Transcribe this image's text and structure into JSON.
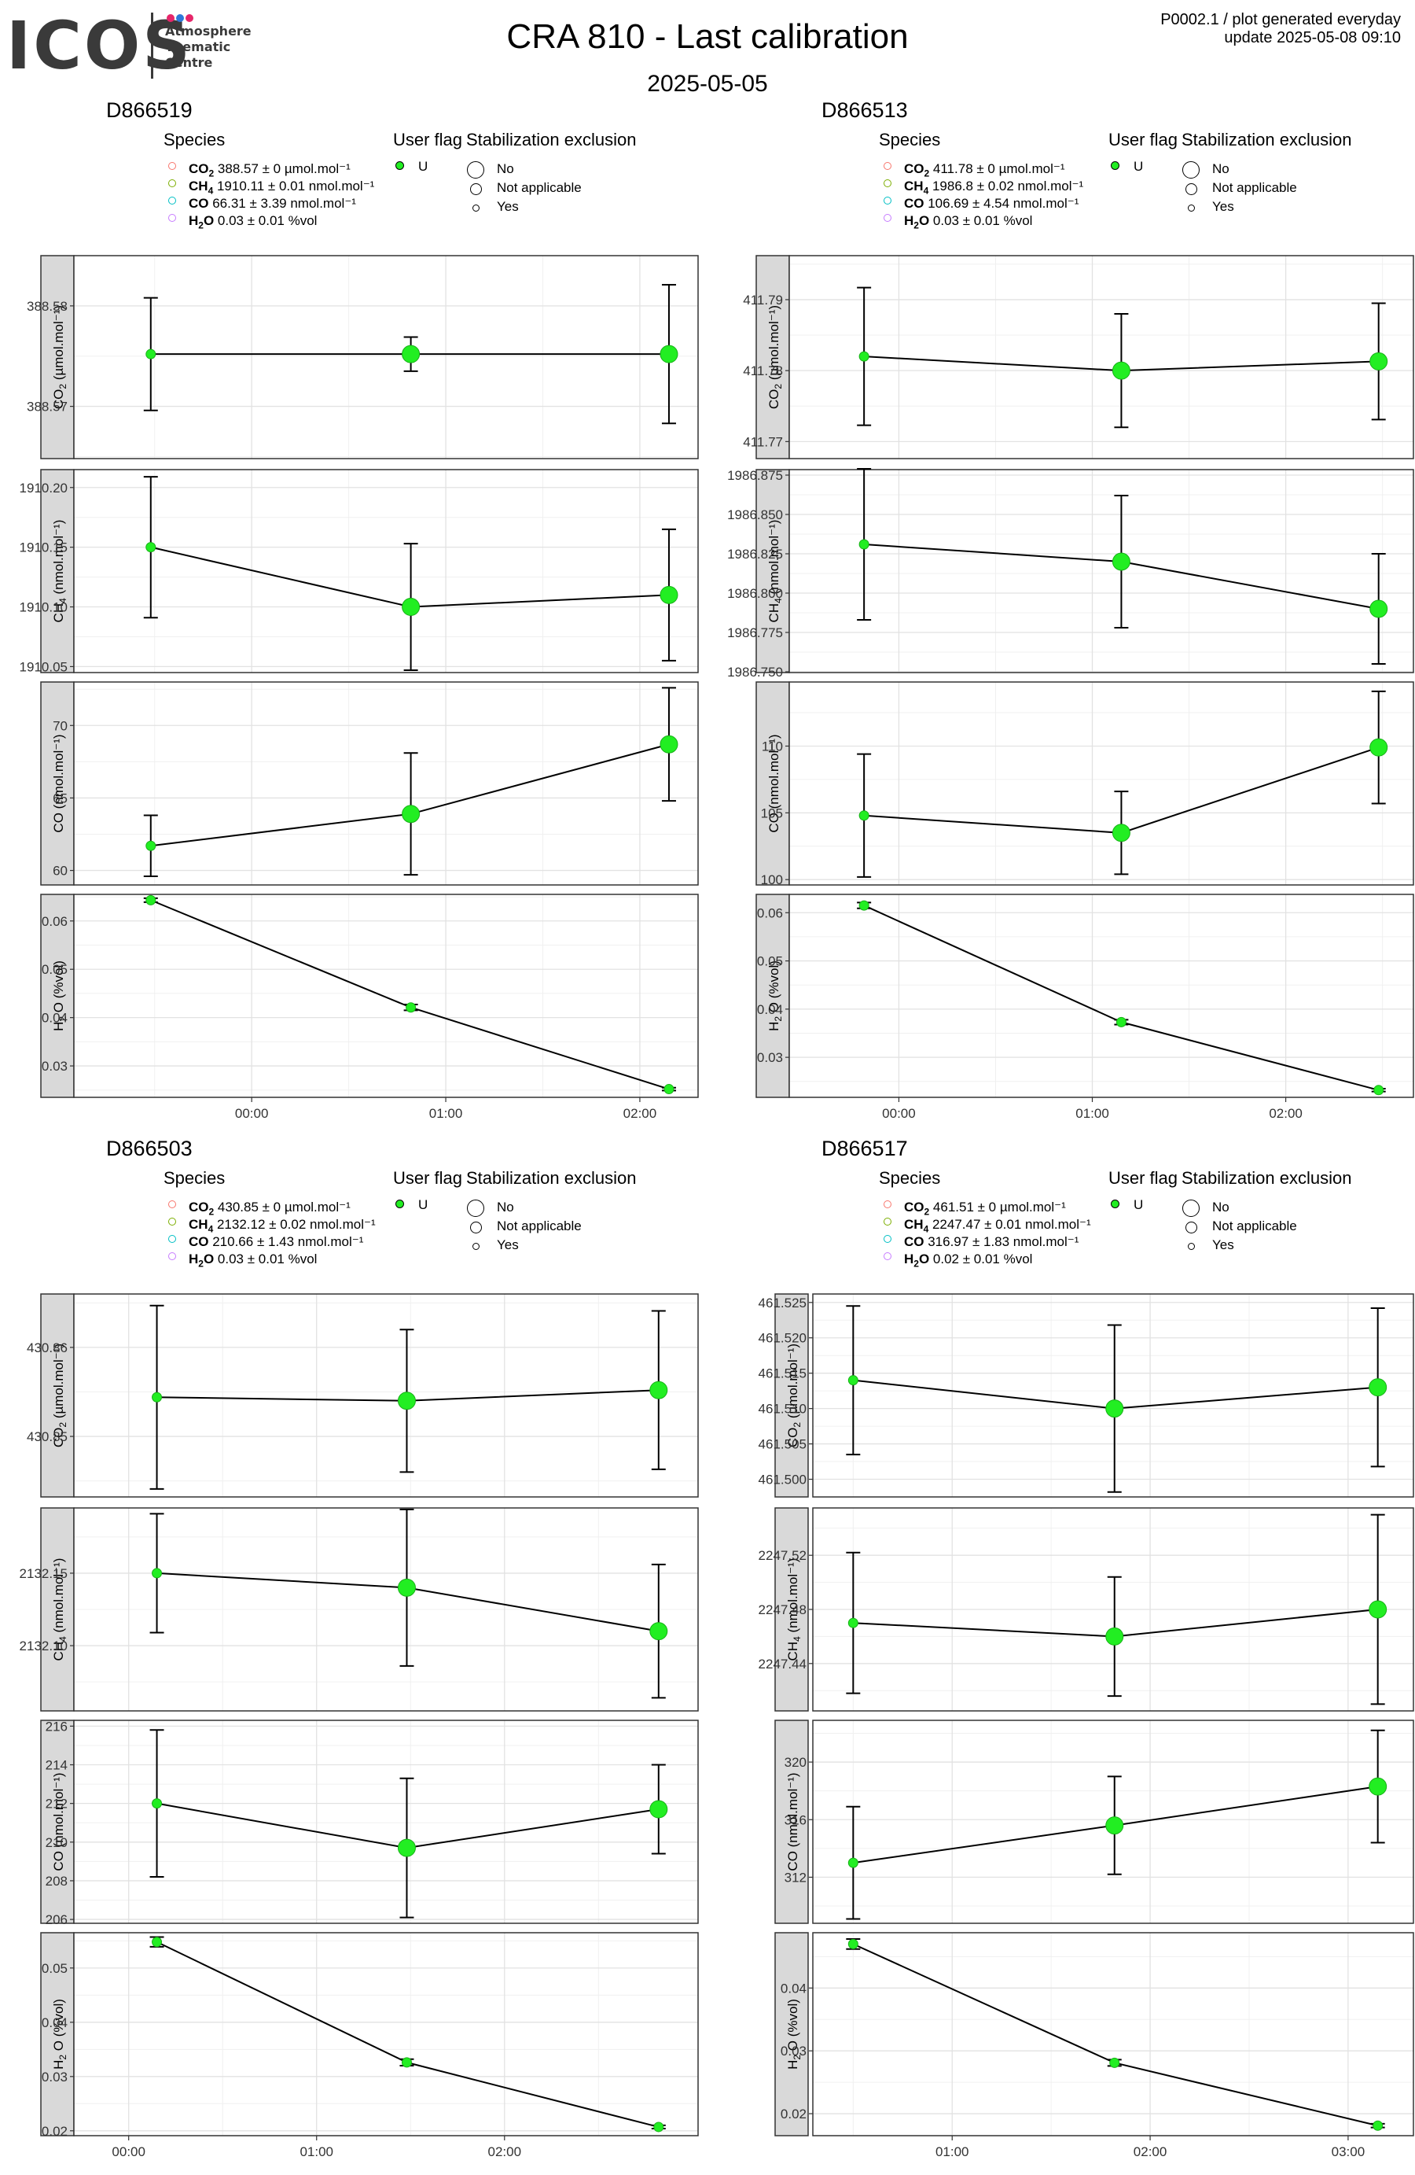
{
  "header": {
    "logo_text": "ICOS",
    "logo_sub": [
      "Atmosphere",
      "Thematic",
      "Centre"
    ],
    "logo_dot_colors": [
      "#e6266a",
      "#2e79d9",
      "#e6266a"
    ],
    "title": "CRA 810 - Last calibration",
    "subtitle": "2025-05-05",
    "meta_line1": "P0002.1 / plot generated everyday",
    "meta_line2": "update  2025-05-08 09:10"
  },
  "legend_labels": {
    "species": "Species",
    "user_flag": "User flag",
    "stabilization": "Stabilization exclusion",
    "flag_value": "U",
    "stab_items": [
      "No",
      "Not applicable",
      "Yes"
    ]
  },
  "colors": {
    "CO2": "#f8766d",
    "CH4": "#7cae00",
    "CO": "#00bfc4",
    "H2O": "#c77cff",
    "point_fill": "#22ee22",
    "point_edge": "#18b018",
    "strip": "#d9d9d9"
  },
  "chart_data": [
    {
      "type": "scatter",
      "panel": "D866519",
      "title": "D866519",
      "legend_species": [
        {
          "name": "CO",
          "sub": "2",
          "text": " 388.57 ± 0 µmol.mol⁻¹"
        },
        {
          "name": "CH",
          "sub": "4",
          "text": " 1910.11 ± 0.01 nmol.mol⁻¹"
        },
        {
          "name": "CO",
          "sub": "",
          "text": " 66.31 ± 3.39 nmol.mol⁻¹"
        },
        {
          "name": "H",
          "sub": "2",
          "text": "O 0.03 ± 0.01 %vol"
        }
      ],
      "x_ticks": [
        "00:00",
        "01:00",
        "02:00"
      ],
      "facets": [
        {
          "gas": "CO",
          "sub": "2",
          "unit": "(µmol.mol⁻¹)",
          "ylim": [
            388.5648,
            388.585
          ],
          "y_ticks": [
            388.57,
            388.58
          ],
          "y_tick_labels": [
            "388.57",
            "388.58"
          ],
          "points": [
            {
              "x": -0.52,
              "y": 388.5752,
              "err": 0.0056,
              "size": "Yes"
            },
            {
              "x": 0.82,
              "y": 388.5752,
              "err": 0.0017,
              "size": "No"
            },
            {
              "x": 2.15,
              "y": 388.5752,
              "err": 0.0069,
              "size": "No"
            }
          ]
        },
        {
          "gas": "CH",
          "sub": "4",
          "unit": "(nmol.mol⁻¹)",
          "ylim": [
            1910.045,
            1910.215
          ],
          "y_ticks": [
            1910.05,
            1910.1,
            1910.15,
            1910.2
          ],
          "y_tick_labels": [
            "1910.05",
            "1910.10",
            "1910.15",
            "1910.20"
          ],
          "points": [
            {
              "x": -0.52,
              "y": 1910.15,
              "err": 0.059,
              "size": "Yes"
            },
            {
              "x": 0.82,
              "y": 1910.1,
              "err": 0.053,
              "size": "No"
            },
            {
              "x": 2.15,
              "y": 1910.11,
              "err": 0.055,
              "size": "No"
            }
          ]
        },
        {
          "gas": "CO",
          "sub": "",
          "unit": "(nmol.mol⁻¹)",
          "ylim": [
            59.0,
            73.0
          ],
          "y_ticks": [
            60,
            65,
            70
          ],
          "y_tick_labels": [
            "60",
            "65",
            "70"
          ],
          "points": [
            {
              "x": -0.52,
              "y": 61.7,
              "err": 2.1,
              "size": "Yes"
            },
            {
              "x": 0.82,
              "y": 63.9,
              "err": 4.2,
              "size": "No"
            },
            {
              "x": 2.15,
              "y": 68.7,
              "err": 3.9,
              "size": "No"
            }
          ]
        },
        {
          "gas": "H",
          "sub": "2",
          "unit": "O (%vol)",
          "ylim": [
            0.0235,
            0.0655
          ],
          "y_ticks": [
            0.03,
            0.04,
            0.05,
            0.06
          ],
          "y_tick_labels": [
            "0.03",
            "0.04",
            "0.05",
            "0.06"
          ],
          "points": [
            {
              "x": -0.52,
              "y": 0.0643,
              "err": 0.0004,
              "size": "Yes"
            },
            {
              "x": 0.82,
              "y": 0.0421,
              "err": 0.0006,
              "size": "Yes"
            },
            {
              "x": 2.15,
              "y": 0.0252,
              "err": 0.0003,
              "size": "Yes"
            }
          ]
        }
      ]
    },
    {
      "type": "scatter",
      "panel": "D866513",
      "title": "D866513",
      "legend_species": [
        {
          "name": "CO",
          "sub": "2",
          "text": " 411.78 ± 0 µmol.mol⁻¹"
        },
        {
          "name": "CH",
          "sub": "4",
          "text": " 1986.8 ± 0.02 nmol.mol⁻¹"
        },
        {
          "name": "CO",
          "sub": "",
          "text": " 106.69 ± 4.54 nmol.mol⁻¹"
        },
        {
          "name": "H",
          "sub": "2",
          "text": "O 0.03 ± 0.01 %vol"
        }
      ],
      "x_ticks": [
        "00:00",
        "01:00",
        "02:00"
      ],
      "facets": [
        {
          "gas": "CO",
          "sub": "2",
          "unit": "(µmol.mol⁻¹)",
          "ylim": [
            411.7676,
            411.7962
          ],
          "y_ticks": [
            411.77,
            411.78,
            411.79
          ],
          "y_tick_labels": [
            "411.77",
            "411.78",
            "411.79"
          ],
          "points": [
            {
              "x": -0.18,
              "y": 411.782,
              "err": 0.0097,
              "size": "Yes"
            },
            {
              "x": 1.15,
              "y": 411.78,
              "err": 0.008,
              "size": "No"
            },
            {
              "x": 2.48,
              "y": 411.7813,
              "err": 0.0082,
              "size": "No"
            }
          ]
        },
        {
          "gas": "CH",
          "sub": "4",
          "unit": "(nmol.mol⁻¹)",
          "ylim": [
            1986.7495,
            1986.8785
          ],
          "y_ticks": [
            1986.75,
            1986.775,
            1986.8,
            1986.825,
            1986.85,
            1986.875
          ],
          "y_tick_labels": [
            "1986.750",
            "1986.775",
            "1986.800",
            "1986.825",
            "1986.850",
            "1986.875"
          ],
          "points": [
            {
              "x": -0.18,
              "y": 1986.831,
              "err": 0.048,
              "size": "Yes"
            },
            {
              "x": 1.15,
              "y": 1986.82,
              "err": 0.042,
              "size": "No"
            },
            {
              "x": 2.48,
              "y": 1986.79,
              "err": 0.035,
              "size": "No"
            }
          ]
        },
        {
          "gas": "CO",
          "sub": "",
          "unit": "(nmol.mol⁻¹)",
          "ylim": [
            99.6,
            114.8
          ],
          "y_ticks": [
            100,
            105,
            110
          ],
          "y_tick_labels": [
            "100",
            "105",
            "110"
          ],
          "points": [
            {
              "x": -0.18,
              "y": 104.8,
              "err": 4.6,
              "size": "Yes"
            },
            {
              "x": 1.15,
              "y": 103.5,
              "err": 3.1,
              "size": "No"
            },
            {
              "x": 2.48,
              "y": 109.9,
              "err": 4.2,
              "size": "No"
            }
          ]
        },
        {
          "gas": "H",
          "sub": "2",
          "unit": "O (%vol)",
          "ylim": [
            0.0217,
            0.0638
          ],
          "y_ticks": [
            0.03,
            0.04,
            0.05,
            0.06
          ],
          "y_tick_labels": [
            "0.03",
            "0.04",
            "0.05",
            "0.06"
          ],
          "points": [
            {
              "x": -0.18,
              "y": 0.0615,
              "err": 0.0006,
              "size": "Yes"
            },
            {
              "x": 1.15,
              "y": 0.0373,
              "err": 0.0005,
              "size": "Yes"
            },
            {
              "x": 2.48,
              "y": 0.0232,
              "err": 0.0003,
              "size": "Yes"
            }
          ]
        }
      ]
    },
    {
      "type": "scatter",
      "panel": "D866503",
      "title": "D866503",
      "legend_species": [
        {
          "name": "CO",
          "sub": "2",
          "text": " 430.85 ± 0 µmol.mol⁻¹"
        },
        {
          "name": "CH",
          "sub": "4",
          "text": " 2132.12 ± 0.02 nmol.mol⁻¹"
        },
        {
          "name": "CO",
          "sub": "",
          "text": " 210.66 ± 1.43 nmol.mol⁻¹"
        },
        {
          "name": "H",
          "sub": "2",
          "text": "O 0.03 ± 0.01 %vol"
        }
      ],
      "x_ticks": [
        "00:00",
        "01:00",
        "02:00"
      ],
      "facets": [
        {
          "gas": "CO",
          "sub": "2",
          "unit": "(µmol.mol⁻¹)",
          "ylim": [
            430.8432,
            430.866
          ],
          "y_ticks": [
            430.85,
            430.86
          ],
          "y_tick_labels": [
            "430.85",
            "430.86"
          ],
          "points": [
            {
              "x": 0.15,
              "y": 430.8544,
              "err": 0.0103,
              "size": "Yes"
            },
            {
              "x": 1.48,
              "y": 430.854,
              "err": 0.008,
              "size": "No"
            },
            {
              "x": 2.82,
              "y": 430.8552,
              "err": 0.0089,
              "size": "No"
            }
          ]
        },
        {
          "gas": "CH",
          "sub": "4",
          "unit": "(nmol.mol⁻¹)",
          "ylim": [
            2132.055,
            2132.195
          ],
          "y_ticks": [
            2132.1,
            2132.15
          ],
          "y_tick_labels": [
            "2132.10",
            "2132.15"
          ],
          "points": [
            {
              "x": 0.15,
              "y": 2132.15,
              "err": 0.041,
              "size": "Yes"
            },
            {
              "x": 1.48,
              "y": 2132.14,
              "err": 0.054,
              "size": "No"
            },
            {
              "x": 2.82,
              "y": 2132.11,
              "err": 0.046,
              "size": "No"
            }
          ]
        },
        {
          "gas": "CO",
          "sub": "",
          "unit": "(nmol.mol⁻¹)",
          "ylim": [
            205.8,
            216.3
          ],
          "y_ticks": [
            206,
            208,
            210,
            212,
            214,
            216
          ],
          "y_tick_labels": [
            "206",
            "208",
            "210",
            "212",
            "214",
            "216"
          ],
          "points": [
            {
              "x": 0.15,
              "y": 212.0,
              "err": 3.8,
              "size": "Yes"
            },
            {
              "x": 1.48,
              "y": 209.7,
              "err": 3.6,
              "size": "No"
            },
            {
              "x": 2.82,
              "y": 211.7,
              "err": 2.3,
              "size": "No"
            }
          ]
        },
        {
          "gas": "H",
          "sub": "2",
          "unit": "O (%vol)",
          "ylim": [
            0.0191,
            0.0565
          ],
          "y_ticks": [
            0.02,
            0.03,
            0.04,
            0.05
          ],
          "y_tick_labels": [
            "0.02",
            "0.03",
            "0.04",
            "0.05"
          ],
          "points": [
            {
              "x": 0.15,
              "y": 0.0548,
              "err": 0.0009,
              "size": "Yes"
            },
            {
              "x": 1.48,
              "y": 0.0326,
              "err": 0.0006,
              "size": "Yes"
            },
            {
              "x": 2.82,
              "y": 0.0207,
              "err": 0.0003,
              "size": "Yes"
            }
          ]
        }
      ]
    },
    {
      "type": "scatter",
      "panel": "D866517",
      "title": "D866517",
      "legend_species": [
        {
          "name": "CO",
          "sub": "2",
          "text": " 461.51 ± 0 µmol.mol⁻¹"
        },
        {
          "name": "CH",
          "sub": "4",
          "text": " 2247.47 ± 0.01 nmol.mol⁻¹"
        },
        {
          "name": "CO",
          "sub": "",
          "text": " 316.97 ± 1.83 nmol.mol⁻¹"
        },
        {
          "name": "H",
          "sub": "2",
          "text": "O 0.02 ± 0.01 %vol"
        }
      ],
      "x_ticks": [
        "01:00",
        "02:00",
        "03:00"
      ],
      "facets": [
        {
          "gas": "CO",
          "sub": "2",
          "unit": "(µmol.mol⁻¹)",
          "ylim": [
            461.4975,
            461.5262
          ],
          "y_ticks": [
            461.5,
            461.505,
            461.51,
            461.515,
            461.52,
            461.525
          ],
          "y_tick_labels": [
            "461.500",
            "461.505",
            "461.510",
            "461.515",
            "461.520",
            "461.525"
          ],
          "points": [
            {
              "x": 0.5,
              "y": 461.514,
              "err": 0.0105,
              "size": "Yes"
            },
            {
              "x": 1.82,
              "y": 461.51,
              "err": 0.0118,
              "size": "No"
            },
            {
              "x": 3.15,
              "y": 461.513,
              "err": 0.0112,
              "size": "No"
            }
          ]
        },
        {
          "gas": "CH",
          "sub": "4",
          "unit": "(nmol.mol⁻¹)",
          "ylim": [
            2247.405,
            2247.555
          ],
          "y_ticks": [
            2247.44,
            2247.48,
            2247.52
          ],
          "y_tick_labels": [
            "2247.44",
            "2247.48",
            "2247.52"
          ],
          "points": [
            {
              "x": 0.5,
              "y": 2247.47,
              "err": 0.052,
              "size": "Yes"
            },
            {
              "x": 1.82,
              "y": 2247.46,
              "err": 0.044,
              "size": "No"
            },
            {
              "x": 3.15,
              "y": 2247.48,
              "err": 0.07,
              "size": "No"
            }
          ]
        },
        {
          "gas": "CO",
          "sub": "",
          "unit": "(nmol.mol⁻¹)",
          "ylim": [
            308.8,
            322.9
          ],
          "y_ticks": [
            312,
            316,
            320
          ],
          "y_tick_labels": [
            "312",
            "316",
            "320"
          ],
          "points": [
            {
              "x": 0.5,
              "y": 313.0,
              "err": 3.9,
              "size": "Yes"
            },
            {
              "x": 1.82,
              "y": 315.6,
              "err": 3.4,
              "size": "No"
            },
            {
              "x": 3.15,
              "y": 318.3,
              "err": 3.9,
              "size": "No"
            }
          ]
        },
        {
          "gas": "H",
          "sub": "2",
          "unit": "O (%vol)",
          "ylim": [
            0.0165,
            0.0488
          ],
          "y_ticks": [
            0.02,
            0.03,
            0.04
          ],
          "y_tick_labels": [
            "0.02",
            "0.03",
            "0.04"
          ],
          "points": [
            {
              "x": 0.5,
              "y": 0.047,
              "err": 0.0008,
              "size": "Yes"
            },
            {
              "x": 1.82,
              "y": 0.0281,
              "err": 0.0005,
              "size": "Yes"
            },
            {
              "x": 3.15,
              "y": 0.0181,
              "err": 0.0003,
              "size": "Yes"
            }
          ]
        }
      ]
    }
  ]
}
